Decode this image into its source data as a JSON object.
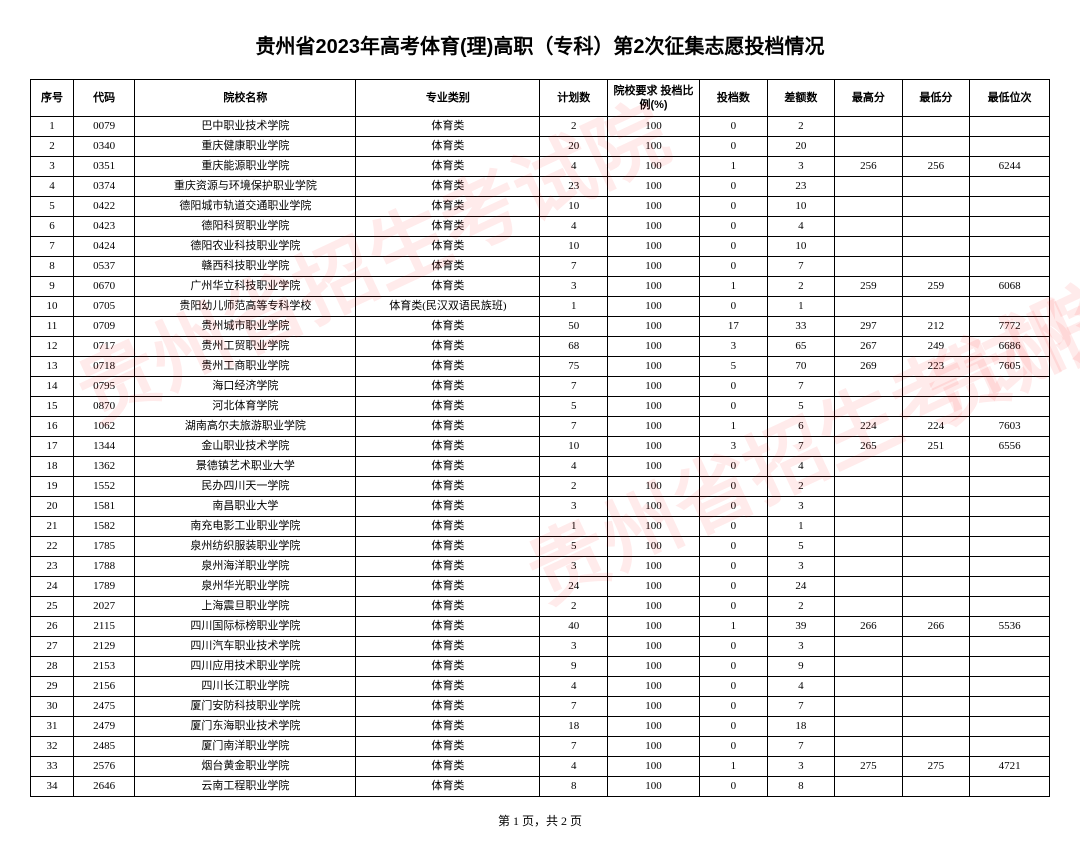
{
  "title": "贵州省2023年高考体育(理)高职（专科）第2次征集志愿投档情况",
  "footer": "第 1 页，共 2 页",
  "watermark": "贵州省招生考试院",
  "columns": [
    "序号",
    "代码",
    "院校名称",
    "专业类别",
    "计划数",
    "院校要求\n投档比例(%)",
    "投档数",
    "差额数",
    "最高分",
    "最低分",
    "最低位次"
  ],
  "rows": [
    [
      "1",
      "0079",
      "巴中职业技术学院",
      "体育类",
      "2",
      "100",
      "0",
      "2",
      "",
      "",
      ""
    ],
    [
      "2",
      "0340",
      "重庆健康职业学院",
      "体育类",
      "20",
      "100",
      "0",
      "20",
      "",
      "",
      ""
    ],
    [
      "3",
      "0351",
      "重庆能源职业学院",
      "体育类",
      "4",
      "100",
      "1",
      "3",
      "256",
      "256",
      "6244"
    ],
    [
      "4",
      "0374",
      "重庆资源与环境保护职业学院",
      "体育类",
      "23",
      "100",
      "0",
      "23",
      "",
      "",
      ""
    ],
    [
      "5",
      "0422",
      "德阳城市轨道交通职业学院",
      "体育类",
      "10",
      "100",
      "0",
      "10",
      "",
      "",
      ""
    ],
    [
      "6",
      "0423",
      "德阳科贸职业学院",
      "体育类",
      "4",
      "100",
      "0",
      "4",
      "",
      "",
      ""
    ],
    [
      "7",
      "0424",
      "德阳农业科技职业学院",
      "体育类",
      "10",
      "100",
      "0",
      "10",
      "",
      "",
      ""
    ],
    [
      "8",
      "0537",
      "赣西科技职业学院",
      "体育类",
      "7",
      "100",
      "0",
      "7",
      "",
      "",
      ""
    ],
    [
      "9",
      "0670",
      "广州华立科技职业学院",
      "体育类",
      "3",
      "100",
      "1",
      "2",
      "259",
      "259",
      "6068"
    ],
    [
      "10",
      "0705",
      "贵阳幼儿师范高等专科学校",
      "体育类(民汉双语民族班)",
      "1",
      "100",
      "0",
      "1",
      "",
      "",
      ""
    ],
    [
      "11",
      "0709",
      "贵州城市职业学院",
      "体育类",
      "50",
      "100",
      "17",
      "33",
      "297",
      "212",
      "7772"
    ],
    [
      "12",
      "0717",
      "贵州工贸职业学院",
      "体育类",
      "68",
      "100",
      "3",
      "65",
      "267",
      "249",
      "6686"
    ],
    [
      "13",
      "0718",
      "贵州工商职业学院",
      "体育类",
      "75",
      "100",
      "5",
      "70",
      "269",
      "223",
      "7605"
    ],
    [
      "14",
      "0795",
      "海口经济学院",
      "体育类",
      "7",
      "100",
      "0",
      "7",
      "",
      "",
      ""
    ],
    [
      "15",
      "0870",
      "河北体育学院",
      "体育类",
      "5",
      "100",
      "0",
      "5",
      "",
      "",
      ""
    ],
    [
      "16",
      "1062",
      "湖南高尔夫旅游职业学院",
      "体育类",
      "7",
      "100",
      "1",
      "6",
      "224",
      "224",
      "7603"
    ],
    [
      "17",
      "1344",
      "金山职业技术学院",
      "体育类",
      "10",
      "100",
      "3",
      "7",
      "265",
      "251",
      "6556"
    ],
    [
      "18",
      "1362",
      "景德镇艺术职业大学",
      "体育类",
      "4",
      "100",
      "0",
      "4",
      "",
      "",
      ""
    ],
    [
      "19",
      "1552",
      "民办四川天一学院",
      "体育类",
      "2",
      "100",
      "0",
      "2",
      "",
      "",
      ""
    ],
    [
      "20",
      "1581",
      "南昌职业大学",
      "体育类",
      "3",
      "100",
      "0",
      "3",
      "",
      "",
      ""
    ],
    [
      "21",
      "1582",
      "南充电影工业职业学院",
      "体育类",
      "1",
      "100",
      "0",
      "1",
      "",
      "",
      ""
    ],
    [
      "22",
      "1785",
      "泉州纺织服装职业学院",
      "体育类",
      "5",
      "100",
      "0",
      "5",
      "",
      "",
      ""
    ],
    [
      "23",
      "1788",
      "泉州海洋职业学院",
      "体育类",
      "3",
      "100",
      "0",
      "3",
      "",
      "",
      ""
    ],
    [
      "24",
      "1789",
      "泉州华光职业学院",
      "体育类",
      "24",
      "100",
      "0",
      "24",
      "",
      "",
      ""
    ],
    [
      "25",
      "2027",
      "上海震旦职业学院",
      "体育类",
      "2",
      "100",
      "0",
      "2",
      "",
      "",
      ""
    ],
    [
      "26",
      "2115",
      "四川国际标榜职业学院",
      "体育类",
      "40",
      "100",
      "1",
      "39",
      "266",
      "266",
      "5536"
    ],
    [
      "27",
      "2129",
      "四川汽车职业技术学院",
      "体育类",
      "3",
      "100",
      "0",
      "3",
      "",
      "",
      ""
    ],
    [
      "28",
      "2153",
      "四川应用技术职业学院",
      "体育类",
      "9",
      "100",
      "0",
      "9",
      "",
      "",
      ""
    ],
    [
      "29",
      "2156",
      "四川长江职业学院",
      "体育类",
      "4",
      "100",
      "0",
      "4",
      "",
      "",
      ""
    ],
    [
      "30",
      "2475",
      "厦门安防科技职业学院",
      "体育类",
      "7",
      "100",
      "0",
      "7",
      "",
      "",
      ""
    ],
    [
      "31",
      "2479",
      "厦门东海职业技术学院",
      "体育类",
      "18",
      "100",
      "0",
      "18",
      "",
      "",
      ""
    ],
    [
      "32",
      "2485",
      "厦门南洋职业学院",
      "体育类",
      "7",
      "100",
      "0",
      "7",
      "",
      "",
      ""
    ],
    [
      "33",
      "2576",
      "烟台黄金职业学院",
      "体育类",
      "4",
      "100",
      "1",
      "3",
      "275",
      "275",
      "4721"
    ],
    [
      "34",
      "2646",
      "云南工程职业学院",
      "体育类",
      "8",
      "100",
      "0",
      "8",
      "",
      "",
      ""
    ]
  ]
}
